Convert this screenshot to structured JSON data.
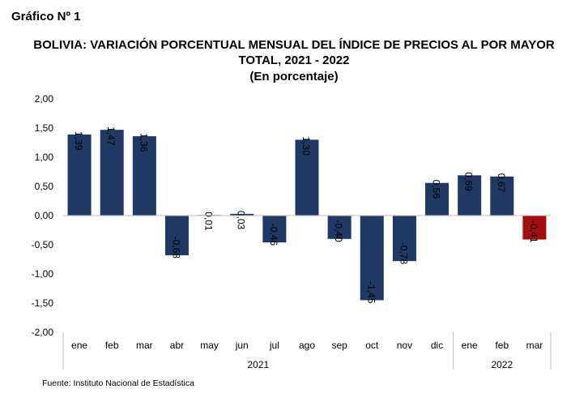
{
  "header": {
    "grafico": "Gráfico Nº 1",
    "title_line1": "BOLIVIA: VARIACIÓN PORCENTUAL MENSUAL DEL ÍNDICE DE PRECIOS AL POR MAYOR",
    "title_line2": "TOTAL, 2021 - 2022",
    "title_line3": "(En porcentaje)"
  },
  "source": "Fuente: Instituto Nacional de Estadística",
  "chart_data": {
    "type": "bar",
    "categories": [
      "ene",
      "feb",
      "mar",
      "abr",
      "may",
      "jun",
      "jul",
      "ago",
      "sep",
      "oct",
      "nov",
      "dic",
      "ene",
      "feb",
      "mar"
    ],
    "values": [
      1.39,
      1.47,
      1.36,
      -0.68,
      0.01,
      0.03,
      -0.46,
      1.3,
      -0.4,
      -1.45,
      -0.78,
      0.56,
      0.69,
      0.67,
      -0.41
    ],
    "data_label_values": [
      "1,39",
      "1,47",
      "1,36",
      "-0,68",
      "0,01",
      "0,03",
      "-0,46",
      "1,30",
      "-0,40",
      "-1,45",
      "-0,78",
      "0,56",
      "0,69",
      "0,67",
      "-0,41"
    ],
    "groups": [
      {
        "label": "2021",
        "start": 0,
        "end": 11
      },
      {
        "label": "2022",
        "start": 12,
        "end": 14
      }
    ],
    "yticks": [
      "2,00",
      "1,50",
      "1,00",
      "0,50",
      "0,00",
      "-0,50",
      "-1,00",
      "-1,50",
      "-2,00"
    ],
    "ylim": [
      -2.0,
      2.0
    ],
    "colors": {
      "bar": "#1f3864",
      "highlight": "#a50e0e",
      "highlight_index": 14
    },
    "grid": false,
    "legend": "none"
  }
}
